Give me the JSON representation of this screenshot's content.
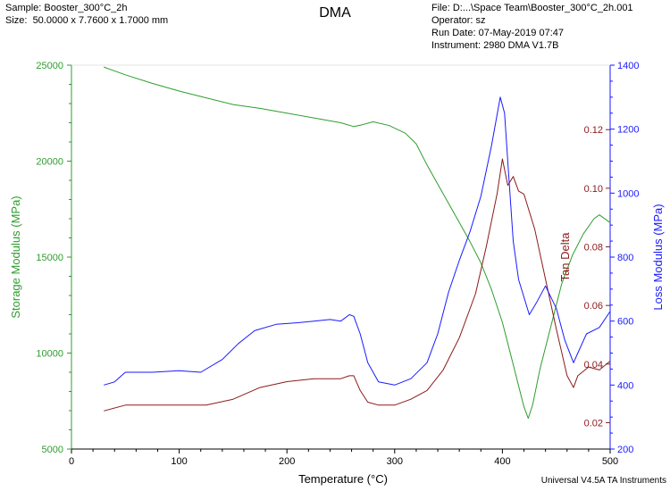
{
  "header": {
    "sample": "Sample: Booster_300°C_2h",
    "size": "Size:  50.0000 x 7.7600 x 1.7000 mm",
    "file": "File: D:...\\Space Team\\Booster_300°C_2h.001",
    "operator": "Operator: sz",
    "run_date": "Run Date: 07-May-2019 07:47",
    "instrument": "Instrument: 2980 DMA V1.7B"
  },
  "footer": "Universal V4.5A TA Instruments",
  "colors": {
    "storage": "#2e9d2e",
    "tan_delta": "#8b1a1a",
    "loss": "#1a1aff",
    "axis_left": "#2e9d2e",
    "axis_right_inner": "#8b1a1a",
    "axis_right_outer": "#1a1aff"
  },
  "chart_data": {
    "type": "line",
    "title": "DMA",
    "xlabel": "Temperature (°C)",
    "xlim": [
      0,
      500
    ],
    "xticks": [
      0,
      100,
      200,
      300,
      400,
      500
    ],
    "axes": {
      "left": {
        "label": "Storage Modulus (MPa)",
        "lim": [
          5000,
          25000
        ],
        "ticks": [
          5000,
          10000,
          15000,
          20000,
          25000
        ]
      },
      "right_inner": {
        "label": "Tan Delta",
        "lim": [
          0.011,
          0.142
        ],
        "ticks": [
          0.02,
          0.04,
          0.06,
          0.08,
          0.1,
          0.12
        ]
      },
      "right_outer": {
        "label": "Loss Modulus (MPa)",
        "lim": [
          200,
          1400
        ],
        "ticks": [
          200,
          400,
          600,
          800,
          1000,
          1200,
          1400
        ]
      }
    },
    "series": [
      {
        "name": "Storage Modulus",
        "axis": "left",
        "x": [
          30,
          50,
          75,
          100,
          125,
          150,
          175,
          200,
          225,
          250,
          262,
          270,
          280,
          295,
          310,
          320,
          330,
          340,
          350,
          360,
          370,
          380,
          390,
          400,
          410,
          415,
          420,
          424,
          428,
          435,
          445,
          455,
          465,
          475,
          485,
          490,
          500
        ],
        "y": [
          24900,
          24500,
          24050,
          23650,
          23300,
          22950,
          22750,
          22500,
          22250,
          22000,
          21800,
          21900,
          22050,
          21850,
          21450,
          20900,
          19800,
          18800,
          17800,
          16800,
          15800,
          14700,
          13300,
          11600,
          9400,
          8300,
          7200,
          6600,
          7300,
          9200,
          11400,
          13600,
          15100,
          16200,
          17000,
          17200,
          16800
        ]
      },
      {
        "name": "Tan Delta",
        "axis": "right_inner",
        "x": [
          30,
          50,
          75,
          100,
          125,
          150,
          175,
          200,
          225,
          250,
          258,
          262,
          268,
          275,
          285,
          300,
          315,
          330,
          345,
          360,
          375,
          385,
          395,
          400,
          405,
          410,
          415,
          420,
          430,
          440,
          450,
          460,
          466,
          470,
          480,
          490,
          500
        ],
        "y": [
          0.024,
          0.026,
          0.026,
          0.026,
          0.026,
          0.028,
          0.032,
          0.034,
          0.035,
          0.035,
          0.036,
          0.036,
          0.031,
          0.027,
          0.026,
          0.026,
          0.028,
          0.031,
          0.038,
          0.049,
          0.064,
          0.08,
          0.098,
          0.11,
          0.101,
          0.104,
          0.099,
          0.098,
          0.086,
          0.069,
          0.052,
          0.036,
          0.032,
          0.036,
          0.039,
          0.038,
          0.041
        ]
      },
      {
        "name": "Loss Modulus",
        "axis": "right_outer",
        "x": [
          30,
          40,
          50,
          75,
          100,
          120,
          140,
          155,
          170,
          190,
          210,
          225,
          240,
          250,
          258,
          262,
          268,
          275,
          285,
          300,
          315,
          330,
          340,
          350,
          360,
          370,
          380,
          390,
          398,
          402,
          406,
          410,
          415,
          425,
          432,
          440,
          450,
          458,
          466,
          470,
          478,
          490,
          500
        ],
        "y": [
          400,
          410,
          440,
          440,
          445,
          440,
          480,
          530,
          570,
          590,
          595,
          600,
          605,
          600,
          620,
          615,
          560,
          470,
          410,
          400,
          420,
          470,
          560,
          690,
          790,
          880,
          990,
          1150,
          1300,
          1250,
          1050,
          850,
          730,
          620,
          660,
          710,
          640,
          540,
          470,
          500,
          560,
          580,
          630
        ]
      }
    ]
  }
}
